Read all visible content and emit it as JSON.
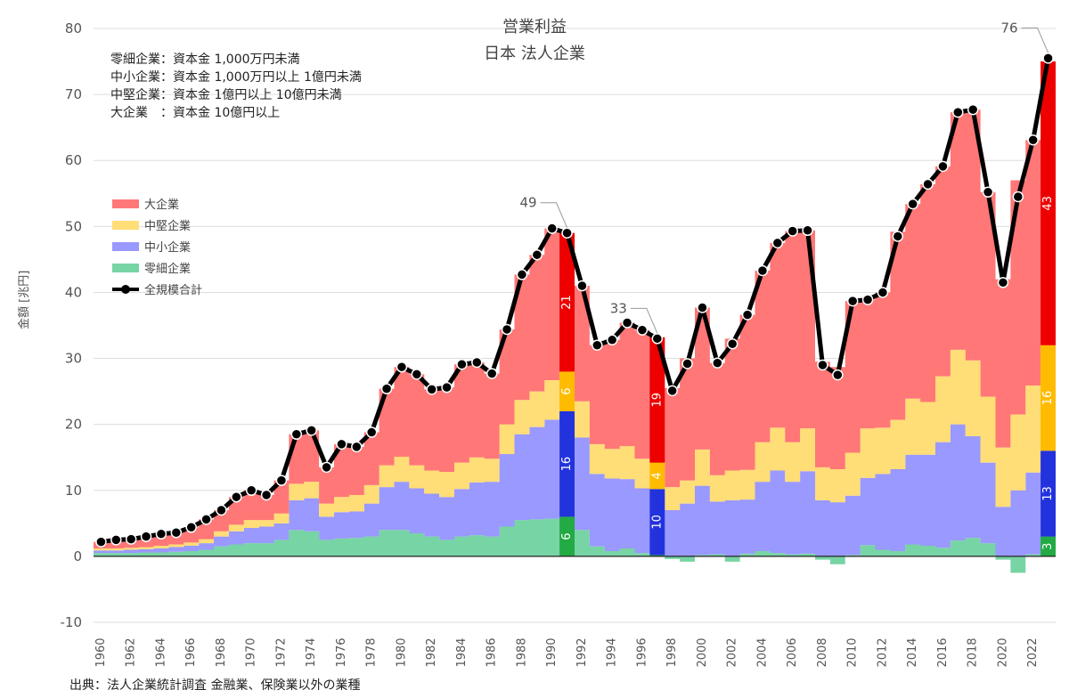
{
  "chart_data": {
    "type": "area",
    "title": "営業利益",
    "subtitle": "日本 法人企業",
    "ylabel": "金額 [兆円]",
    "source": "出典：法人企業統計調査 金融業、保険業以外の業種",
    "notes": [
      "零細企業：資本金 1,000万円未満",
      "中小企業：資本金 1,000万円以上 1億円未満",
      "中堅企業：資本金 1億円以上 10億円未満",
      "大企業　：資本金 10億円以上"
    ],
    "ylim": [
      -10,
      80
    ],
    "yticks": [
      -10,
      0,
      10,
      20,
      30,
      40,
      50,
      60,
      70,
      80
    ],
    "x": [
      1960,
      1961,
      1962,
      1963,
      1964,
      1965,
      1966,
      1967,
      1968,
      1969,
      1970,
      1971,
      1972,
      1973,
      1974,
      1975,
      1976,
      1977,
      1978,
      1979,
      1980,
      1981,
      1982,
      1983,
      1984,
      1985,
      1986,
      1987,
      1988,
      1989,
      1990,
      1991,
      1992,
      1993,
      1994,
      1995,
      1996,
      1997,
      1998,
      1999,
      2000,
      2001,
      2002,
      2003,
      2004,
      2005,
      2006,
      2007,
      2008,
      2009,
      2010,
      2011,
      2012,
      2013,
      2014,
      2015,
      2016,
      2017,
      2018,
      2019,
      2020,
      2021,
      2022,
      2023
    ],
    "xticks": [
      "1960",
      "1962",
      "1964",
      "1966",
      "1968",
      "1970",
      "1972",
      "1974",
      "1976",
      "1978",
      "1980",
      "1982",
      "1984",
      "1986",
      "1988",
      "1990",
      "1992",
      "1994",
      "1996",
      "1998",
      "2000",
      "2002",
      "2004",
      "2006",
      "2008",
      "2010",
      "2012",
      "2014",
      "2016",
      "2018",
      "2020",
      "2022"
    ],
    "series": [
      {
        "name": "零細企業",
        "color": "#77d4a4",
        "values": [
          0.5,
          0.5,
          0.5,
          0.6,
          0.6,
          0.7,
          0.8,
          1.0,
          1.5,
          1.8,
          2.0,
          2.0,
          2.5,
          4.0,
          3.8,
          2.5,
          2.7,
          2.8,
          3.0,
          4.0,
          4.0,
          3.5,
          3.0,
          2.5,
          3.0,
          3.2,
          3.0,
          4.5,
          5.5,
          5.6,
          5.7,
          6.0,
          4.0,
          1.5,
          0.8,
          1.2,
          0.5,
          0.2,
          -0.4,
          -0.8,
          0.2,
          0.3,
          -0.8,
          0.4,
          0.8,
          0.5,
          0.3,
          0.4,
          -0.5,
          -1.2,
          0.2,
          1.7,
          1.0,
          0.8,
          1.8,
          1.6,
          1.3,
          2.4,
          2.8,
          2.0,
          -0.5,
          -2.5,
          0.3,
          3.0
        ]
      },
      {
        "name": "中小企業",
        "color": "#9999ff",
        "values": [
          0.4,
          0.4,
          0.5,
          0.5,
          0.6,
          0.7,
          0.8,
          1.0,
          1.5,
          2.0,
          2.3,
          2.5,
          2.5,
          4.5,
          5.0,
          3.5,
          4.0,
          4.0,
          5.0,
          6.5,
          7.3,
          6.8,
          6.5,
          6.5,
          7.2,
          8.0,
          8.3,
          11.0,
          13.0,
          14.0,
          15.0,
          16.0,
          14.0,
          11.0,
          11.0,
          10.5,
          9.8,
          10.0,
          7.0,
          8.0,
          10.5,
          8.0,
          8.5,
          8.2,
          10.5,
          12.5,
          11.0,
          12.5,
          8.5,
          8.2,
          9.0,
          10.2,
          11.5,
          12.4,
          13.6,
          13.8,
          16.0,
          17.6,
          15.4,
          12.2,
          7.5,
          10.0,
          12.4,
          13.0
        ]
      },
      {
        "name": "中堅企業",
        "color": "#ffdd77",
        "values": [
          0.3,
          0.3,
          0.3,
          0.3,
          0.4,
          0.4,
          0.5,
          0.6,
          0.8,
          1.0,
          1.2,
          1.0,
          1.5,
          2.5,
          2.5,
          2.0,
          2.3,
          2.5,
          2.8,
          3.3,
          3.8,
          3.5,
          3.5,
          3.8,
          4.0,
          3.8,
          3.5,
          4.5,
          5.2,
          5.4,
          6.0,
          6.0,
          5.5,
          4.5,
          4.5,
          5.0,
          4.5,
          4.0,
          3.5,
          3.5,
          5.5,
          4.0,
          4.5,
          4.5,
          6.0,
          6.5,
          6.0,
          6.5,
          5.0,
          5.0,
          6.5,
          7.5,
          7.0,
          7.5,
          8.5,
          8.0,
          10.0,
          11.3,
          11.5,
          10.0,
          9.0,
          11.5,
          13.2,
          16.0
        ]
      },
      {
        "name": "大企業",
        "color": "#ff7777",
        "values": [
          1.0,
          1.3,
          1.3,
          1.6,
          1.8,
          1.8,
          2.3,
          3.0,
          3.2,
          4.2,
          4.5,
          3.8,
          5.0,
          7.5,
          7.8,
          5.5,
          8.0,
          7.3,
          8.0,
          11.6,
          13.6,
          13.8,
          12.3,
          12.8,
          14.9,
          14.4,
          12.9,
          14.4,
          19.0,
          20.7,
          23.0,
          21.0,
          17.5,
          15.0,
          16.5,
          18.7,
          19.5,
          19.0,
          15.0,
          18.5,
          21.5,
          17.0,
          20.0,
          23.5,
          26.0,
          28.0,
          32.0,
          30.0,
          16.0,
          15.5,
          23.0,
          19.5,
          20.5,
          28.5,
          29.5,
          33.0,
          31.8,
          36.0,
          38.0,
          31.0,
          25.5,
          35.5,
          37.2,
          43.0
        ]
      }
    ],
    "total": {
      "name": "全規模合計",
      "color": "#000000",
      "values": [
        2.2,
        2.5,
        2.6,
        3.0,
        3.4,
        3.6,
        4.4,
        5.6,
        7.0,
        9.0,
        10.0,
        9.3,
        11.5,
        18.5,
        19.1,
        13.5,
        17.0,
        16.6,
        18.8,
        25.4,
        28.7,
        27.6,
        25.3,
        25.6,
        29.1,
        29.4,
        27.7,
        34.4,
        42.7,
        45.7,
        49.7,
        49.0,
        41.0,
        32.0,
        32.8,
        35.4,
        34.3,
        33.0,
        25.1,
        29.2,
        37.7,
        29.3,
        32.2,
        36.6,
        43.3,
        47.5,
        49.3,
        49.4,
        29.0,
        27.5,
        38.7,
        38.9,
        40.0,
        48.5,
        53.4,
        56.4,
        59.1,
        67.3,
        67.7,
        55.2,
        41.5,
        54.5,
        63.1,
        75.5
      ]
    },
    "callouts": [
      {
        "x": 1991,
        "label": "49"
      },
      {
        "x": 1997,
        "label": "33"
      },
      {
        "x": 2023,
        "label": "76"
      }
    ],
    "highlights": [
      {
        "x": 1991,
        "labels": [
          "6",
          "16",
          "6",
          "21"
        ]
      },
      {
        "x": 1997,
        "labels": [
          "0",
          "10",
          "4",
          "19"
        ]
      },
      {
        "x": 2023,
        "labels": [
          "3",
          "13",
          "16",
          "43"
        ]
      }
    ],
    "highlight_colors": [
      "#22aa44",
      "#2233dd",
      "#ffbb00",
      "#ee0000"
    ],
    "legend": [
      "大企業",
      "中堅企業",
      "中小企業",
      "零細企業",
      "全規模合計"
    ]
  }
}
